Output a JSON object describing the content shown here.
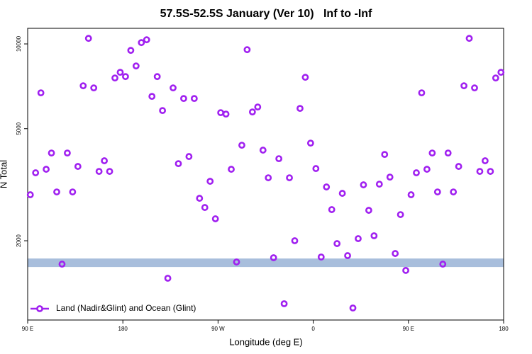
{
  "chart_data": {
    "type": "scatter",
    "title": "57.5S-52.5S January (Ver 10)   Inf to -Inf",
    "xlabel": "Longitude (deg E)",
    "ylabel": "N Total",
    "xlim": [
      90,
      540
    ],
    "xticks": [
      {
        "value": 90,
        "label": "90 E"
      },
      180,
      {
        "value": 270,
        "label": "90 W"
      },
      {
        "value": 360,
        "label": "0"
      },
      {
        "value": 450,
        "label": "90 E"
      },
      {
        "value": 540,
        "label": "180"
      }
    ],
    "ylim": [
      1046,
      11360
    ],
    "yticks": [
      2000,
      5000,
      10000
    ],
    "ylog": true,
    "legend": "bottom-left",
    "hline": 1670,
    "hline_color": "#a8bedc",
    "series": [
      {
        "name": "Land (Nadir&Glint) and Ocean (Glint)",
        "color": "#a020f0",
        "x": [
          92.5,
          97.5,
          102.5,
          107.5,
          112.5,
          117.5,
          122.5,
          127.5,
          132.5,
          137.5,
          142.5,
          147.5,
          152.5,
          157.5,
          162.5,
          167.5,
          172.5,
          177.5,
          182.5,
          187.5,
          192.5,
          197.5,
          202.5,
          207.5,
          212.5,
          217.5,
          222.5,
          227.5,
          232.5,
          237.5,
          242.5,
          247.5,
          252.5,
          257.5,
          262.5,
          267.5,
          272.5,
          277.5,
          282.5,
          287.5,
          292.5,
          297.5,
          302.5,
          307.5,
          312.5,
          317.5,
          322.5,
          327.5,
          332.5,
          337.5,
          342.5,
          347.5,
          352.5,
          357.5,
          362.5,
          367.5,
          372.5,
          377.5,
          382.5,
          387.5,
          392.5,
          397.5,
          402.5,
          407.5,
          412.5,
          417.5,
          422.5,
          427.5,
          432.5,
          437.5,
          442.5,
          447.5,
          452.5,
          457.5,
          462.5,
          467.5,
          472.5,
          477.5,
          482.5,
          487.5,
          492.5,
          497.5,
          502.5,
          507.5,
          512.5,
          517.5,
          522.5,
          527.5,
          532.5,
          537.5
        ],
        "values": [
          2913,
          3486,
          6702,
          3588,
          4098,
          2981,
          1652,
          4098,
          2981,
          3672,
          7101,
          10464,
          6979,
          3526,
          3846,
          3526,
          7569,
          7928,
          7656,
          9484,
          8350,
          10108,
          10345,
          6511,
          7656,
          5800,
          1472,
          6979,
          3757,
          6399,
          3982,
          6399,
          2830,
          2625,
          3252,
          2393,
          5700,
          5634,
          3588,
          1681,
          4368,
          9539,
          5733,
          5970,
          4195,
          3347,
          1741,
          3913,
          1195,
          3347,
          2000,
          5901,
          7612,
          4444,
          3609,
          1751,
          3105,
          2580,
          1954,
          2947,
          1771,
          1154,
          2035,
          3159,
          2565,
          2083,
          3177,
          4051,
          3366,
          1802,
          2477,
          1569,
          2913,
          3486,
          6702,
          3588,
          4098,
          2981,
          1652,
          4098,
          2981,
          3672,
          7101,
          10464,
          6979,
          3526,
          3846,
          3526,
          7569,
          7928
        ]
      }
    ]
  }
}
